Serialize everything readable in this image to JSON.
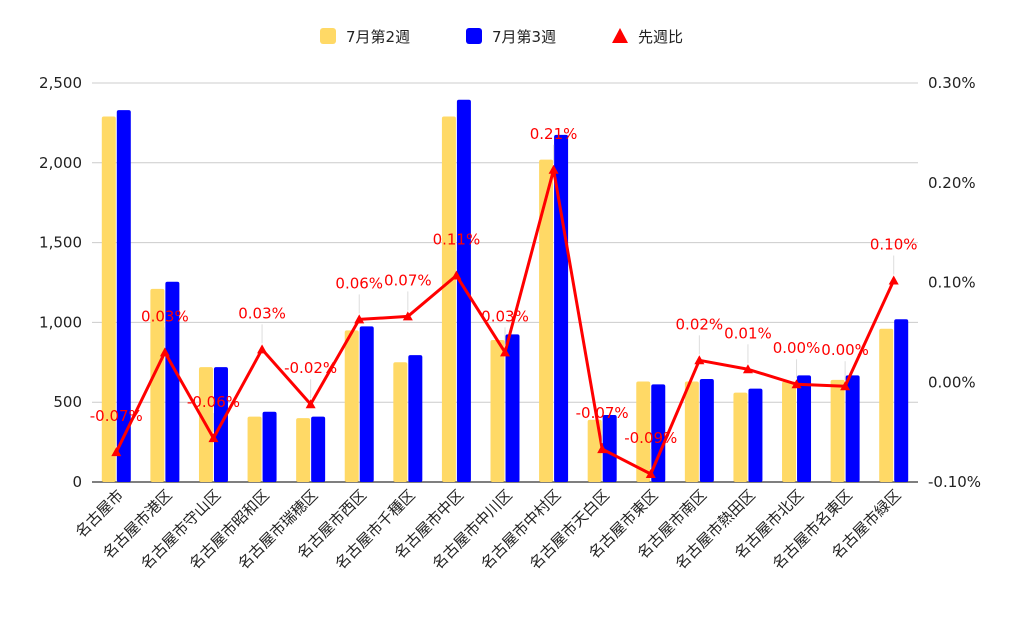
{
  "chart_data": {
    "type": "bar",
    "categories": [
      "名古屋市",
      "名古屋市港区",
      "名古屋市守山区",
      "名古屋市昭和区",
      "名古屋市瑞穂区",
      "名古屋市西区",
      "名古屋市千種区",
      "名古屋市中区",
      "名古屋市中川区",
      "名古屋市中村区",
      "名古屋市天白区",
      "名古屋市東区",
      "名古屋市南区",
      "名古屋市熱田区",
      "名古屋市北区",
      "名古屋市名東区",
      "名古屋市緑区"
    ],
    "series": [
      {
        "name": "7月第2週",
        "kind": "bar",
        "axis": "left",
        "color": "#ffd966",
        "values": [
          2290,
          1210,
          720,
          410,
          400,
          950,
          750,
          2290,
          890,
          2020,
          390,
          630,
          630,
          560,
          630,
          640,
          960
        ]
      },
      {
        "name": "7月第3週",
        "kind": "bar",
        "axis": "left",
        "color": "#0000ff",
        "values": [
          2330,
          1255,
          720,
          440,
          410,
          975,
          795,
          2395,
          925,
          2175,
          420,
          612,
          645,
          585,
          668,
          668,
          1020
        ]
      },
      {
        "name": "先週比",
        "kind": "line",
        "axis": "right",
        "color": "#ff0000",
        "values": [
          -0.07,
          0.03,
          -0.056,
          0.033,
          -0.022,
          0.063,
          0.066,
          0.107,
          0.03,
          0.213,
          -0.067,
          -0.092,
          0.022,
          0.013,
          -0.002,
          -0.004,
          0.102
        ],
        "labels": [
          "-0.07%",
          "0.03%",
          "-0.06%",
          "0.03%",
          "-0.02%",
          "0.06%",
          "0.07%",
          "0.11%",
          "0.03%",
          "0.21%",
          "-0.07%",
          "-0.09%",
          "0.02%",
          "0.01%",
          "0.00%",
          "0.00%",
          "0.10%"
        ]
      }
    ],
    "y_left": {
      "min": 0,
      "max": 2500,
      "ticks": [
        "0",
        "500",
        "1,000",
        "1,500",
        "2,000",
        "2,500"
      ],
      "tick_values": [
        0,
        500,
        1000,
        1500,
        2000,
        2500
      ]
    },
    "y_right": {
      "min": -0.1,
      "max": 0.3,
      "ticks": [
        "-0.10%",
        "0.00%",
        "0.10%",
        "0.20%",
        "0.30%"
      ],
      "tick_values": [
        -0.1,
        0,
        0.1,
        0.2,
        0.3
      ]
    },
    "legend_position": "top",
    "grid": true
  }
}
